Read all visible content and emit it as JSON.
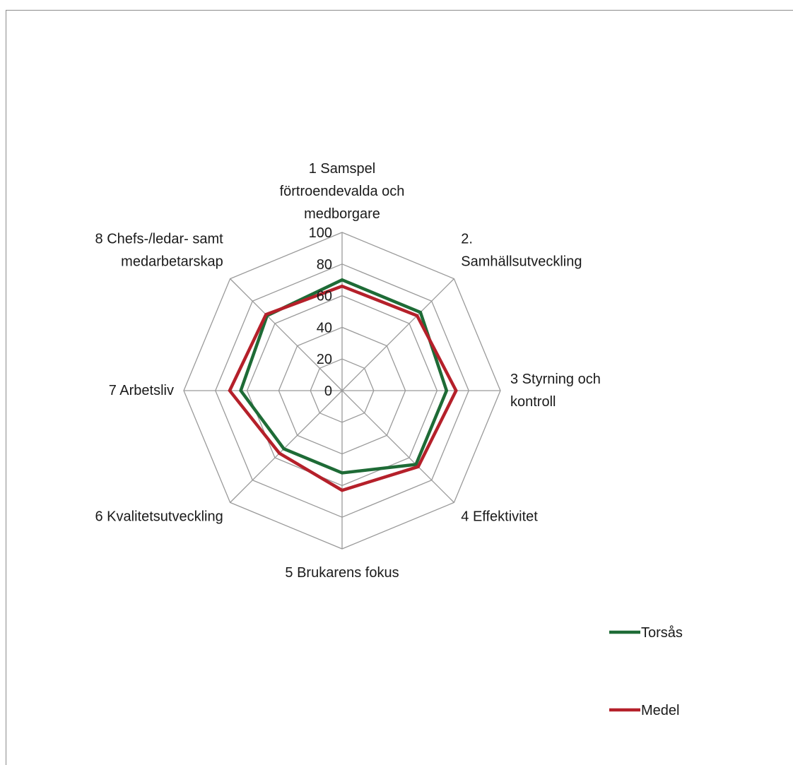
{
  "chart_data": {
    "type": "radar",
    "categories": [
      [
        "1 Samspel",
        "förtroendevalda och",
        "medborgare"
      ],
      [
        "2.",
        "Samhällsutveckling"
      ],
      [
        "3 Styrning och",
        "kontroll"
      ],
      [
        "4 Effektivitet"
      ],
      [
        "5 Brukarens fokus"
      ],
      [
        "6 Kvalitetsutveckling"
      ],
      [
        "7 Arbetsliv"
      ],
      [
        "8 Chefs-/ledar- samt",
        "medarbetarskap"
      ]
    ],
    "rlim": [
      0,
      100
    ],
    "ticks": [
      0,
      20,
      40,
      60,
      80,
      100
    ],
    "tick_labels": [
      "0",
      "20",
      "40",
      "60",
      "80",
      "100"
    ],
    "grid": true,
    "series": [
      {
        "name": "Torsås",
        "color": "#1e6b36",
        "values": [
          70,
          70,
          66,
          66,
          52,
          52,
          64,
          67
        ]
      },
      {
        "name": "Medel",
        "color": "#b5202a",
        "values": [
          66,
          67,
          72,
          68,
          63,
          56,
          71,
          68
        ]
      }
    ],
    "legend_position": "right"
  }
}
